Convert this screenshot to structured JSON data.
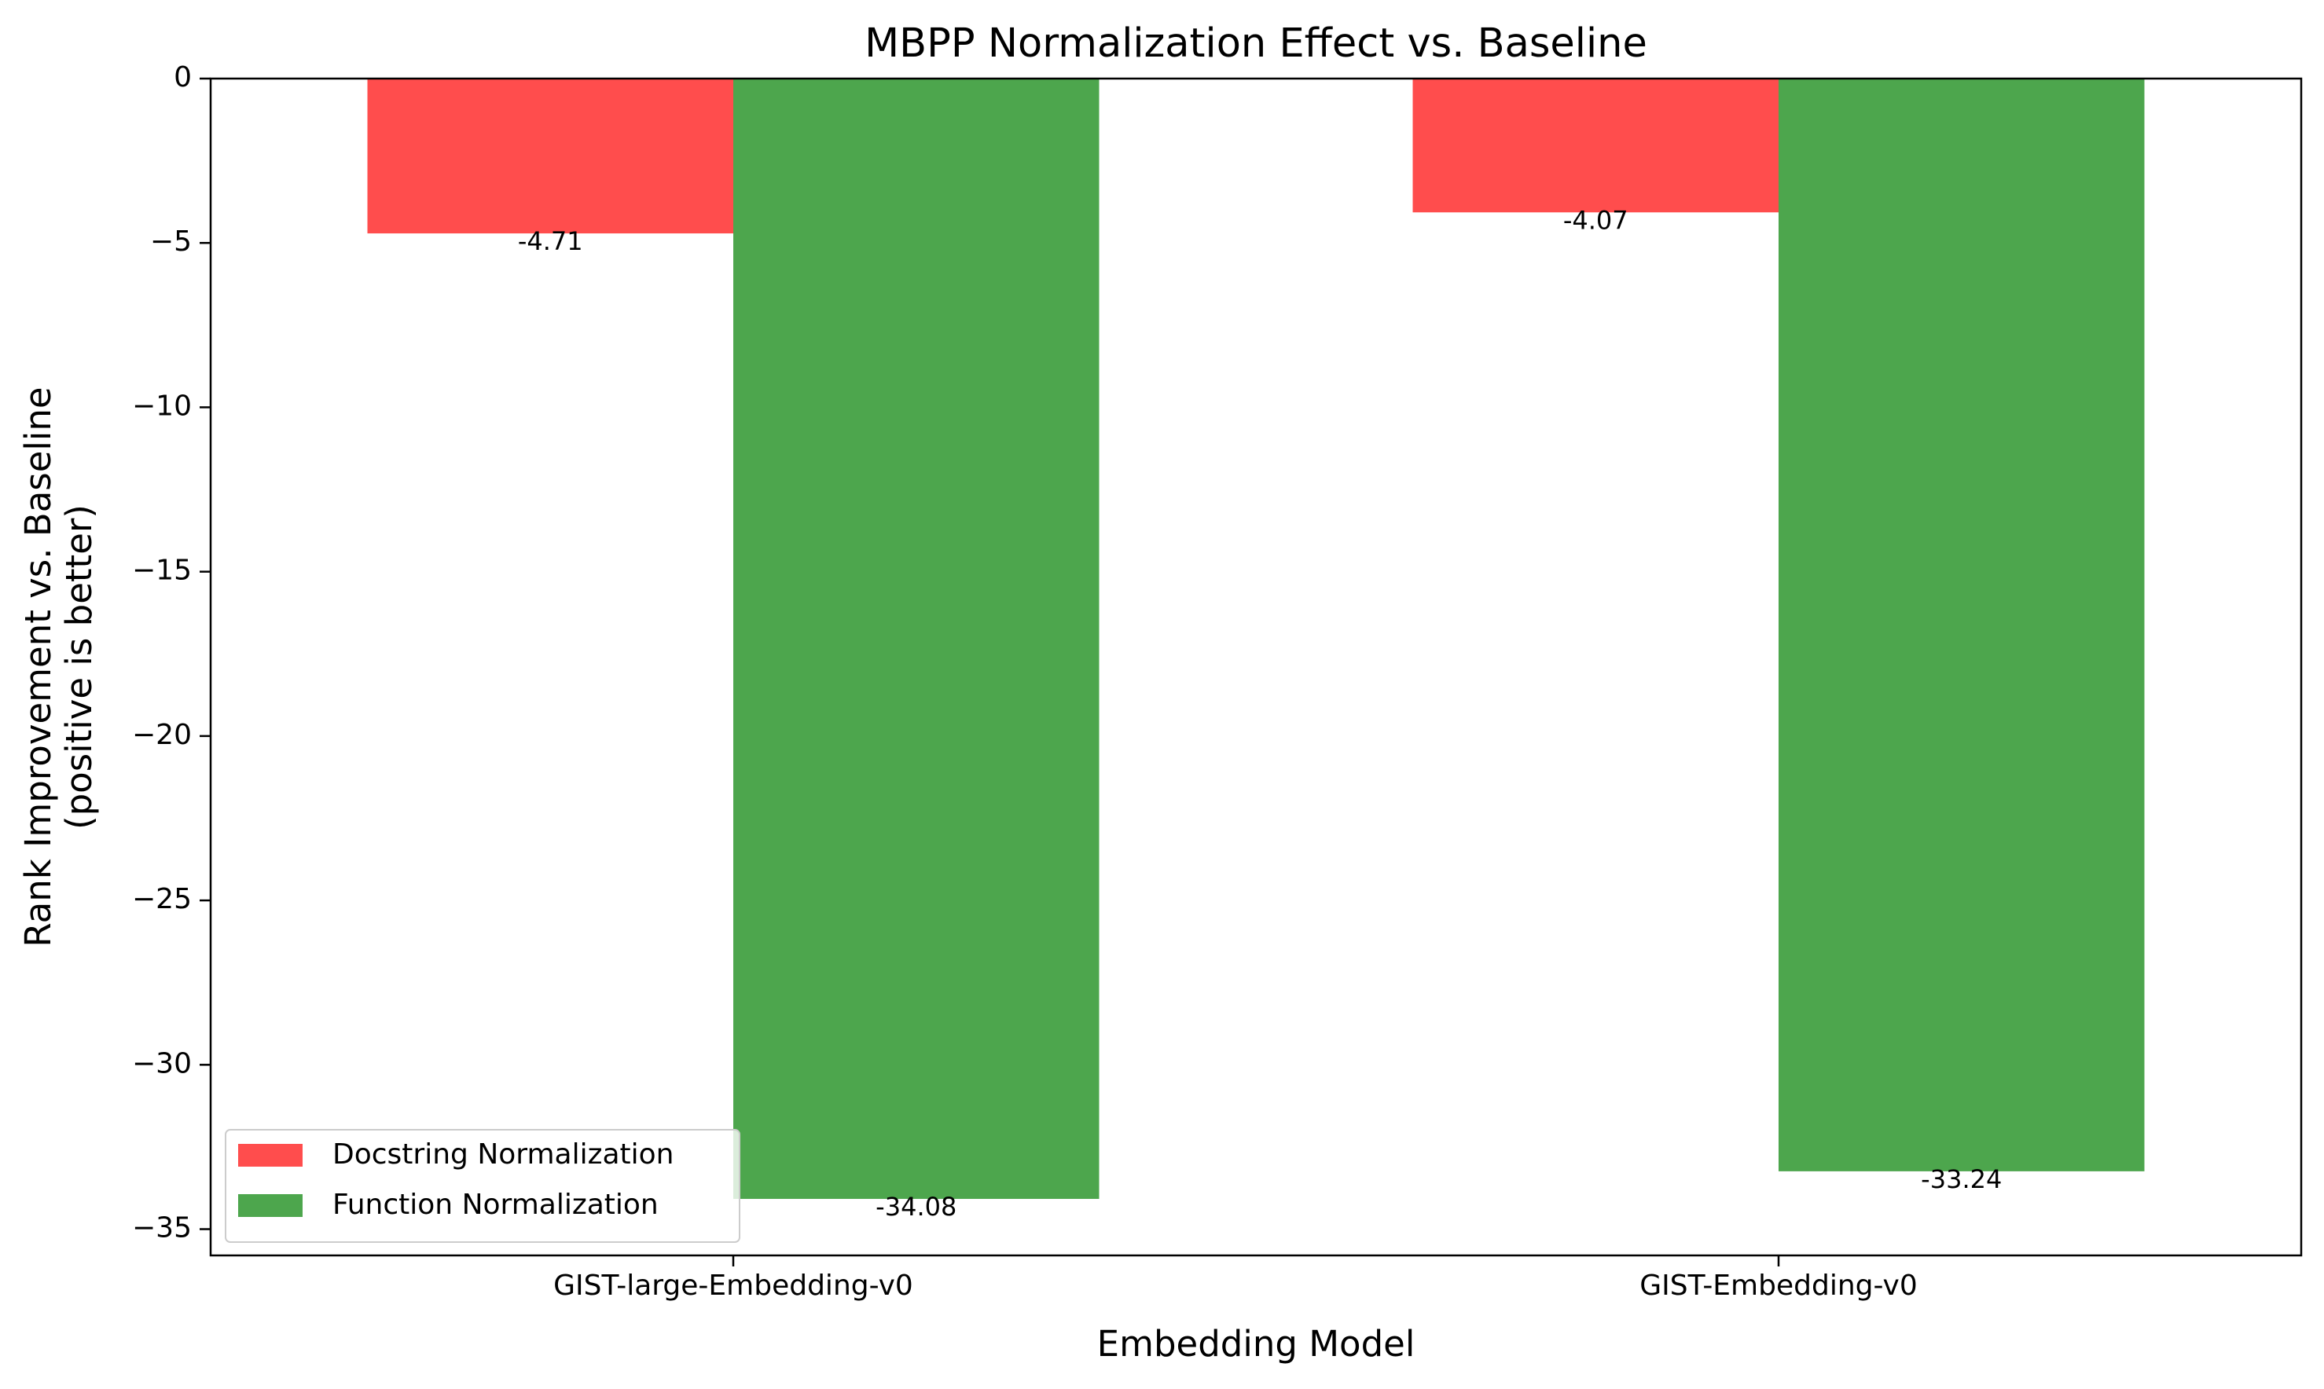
{
  "chart_data": {
    "type": "bar",
    "title": "MBPP Normalization Effect vs. Baseline",
    "xlabel": "Embedding Model",
    "ylabel": [
      "Rank Improvement vs. Baseline",
      "(positive is better)"
    ],
    "categories": [
      "GIST-large-Embedding-v0",
      "GIST-Embedding-v0"
    ],
    "series": [
      {
        "name": "Docstring Normalization",
        "color": "#ff4d4d",
        "values": [
          -4.71,
          -4.07
        ],
        "labels": [
          "-4.71",
          "-4.07"
        ]
      },
      {
        "name": "Function Normalization",
        "color": "#4da64d",
        "values": [
          -34.08,
          -33.24
        ],
        "labels": [
          "-34.08",
          "-33.24"
        ]
      }
    ],
    "yticks": [
      0,
      -5,
      -10,
      -15,
      -20,
      -25,
      -30,
      -35
    ],
    "ytick_labels": [
      "0",
      "−5",
      "−10",
      "−15",
      "−20",
      "−25",
      "−30",
      "−35"
    ],
    "ylim": [
      -35.8,
      0
    ],
    "grid": false,
    "legend_position": "lower-left"
  }
}
